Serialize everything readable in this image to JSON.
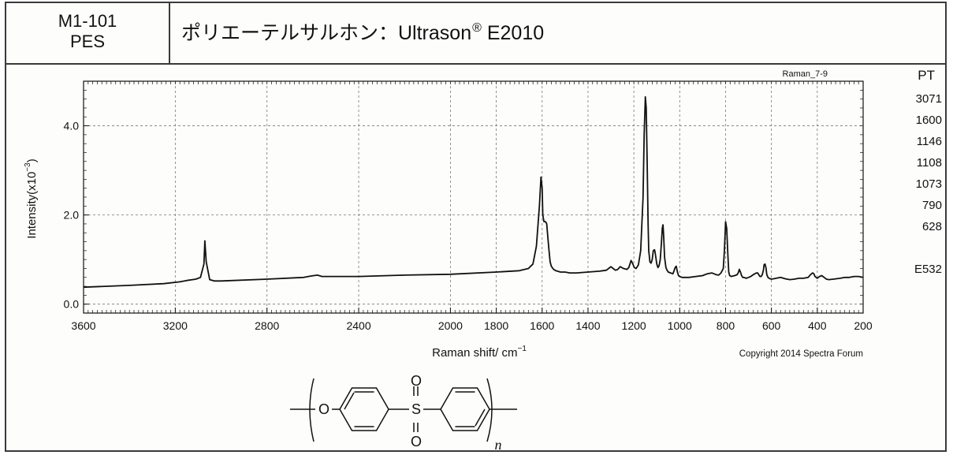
{
  "header": {
    "code": "M1-101",
    "abbrev": "PES",
    "title_main": "ポリエーテルサルホン：Ultrason",
    "title_reg": "®",
    "title_tail": " E2010"
  },
  "chart_data": {
    "type": "line",
    "tag": "Raman_7-9",
    "xlabel": "Raman shift/ cm",
    "xlabel_sup": "−1",
    "ylabel": "Intensity(x10",
    "ylabel_sup": "−3",
    "ylabel_tail": ")",
    "xlim": [
      3600,
      200
    ],
    "ylim": [
      -0.2,
      5.0
    ],
    "x_ticks": [
      3600,
      3200,
      2800,
      2400,
      2000,
      1800,
      1600,
      1400,
      1200,
      1000,
      800,
      600,
      400,
      200
    ],
    "x_tick_labels": [
      "3600",
      "3200",
      "2800",
      "2400",
      "2000",
      "1800",
      "1600",
      "1400",
      "1200",
      "1000",
      "800",
      "600",
      "400",
      "200"
    ],
    "y_ticks": [
      0.0,
      2.0,
      4.0
    ],
    "y_tick_labels": [
      "0.0",
      "2.0",
      "4.0"
    ],
    "grid": true,
    "copyright": "Copyright 2014 Spectra Forum",
    "peak_table_header": "PT",
    "peak_table": [
      "3071",
      "1600",
      "1146",
      "1108",
      "1073",
      "790",
      "628"
    ],
    "excitation": "E532",
    "series": [
      {
        "color": "#111111",
        "x": [
          3600,
          3400,
          3250,
          3180,
          3150,
          3110,
          3090,
          3075,
          3071,
          3065,
          3050,
          3030,
          3000,
          2800,
          2640,
          2610,
          2580,
          2560,
          2400,
          2200,
          2000,
          1800,
          1700,
          1660,
          1640,
          1625,
          1612,
          1605,
          1600,
          1597,
          1592,
          1585,
          1580,
          1575,
          1570,
          1565,
          1560,
          1550,
          1540,
          1520,
          1500,
          1480,
          1450,
          1400,
          1350,
          1320,
          1310,
          1300,
          1290,
          1280,
          1270,
          1260,
          1245,
          1230,
          1222,
          1212,
          1206,
          1198,
          1190,
          1180,
          1170,
          1160,
          1155,
          1150,
          1146,
          1142,
          1138,
          1135,
          1130,
          1125,
          1120,
          1115,
          1110,
          1108,
          1104,
          1100,
          1095,
          1090,
          1085,
          1080,
          1076,
          1073,
          1070,
          1066,
          1060,
          1055,
          1050,
          1040,
          1030,
          1025,
          1020,
          1015,
          1010,
          1005,
          1000,
          990,
          960,
          930,
          900,
          880,
          860,
          840,
          830,
          820,
          810,
          805,
          800,
          795,
          790,
          786,
          782,
          775,
          770,
          760,
          750,
          745,
          740,
          735,
          730,
          725,
          720,
          710,
          700,
          690,
          680,
          665,
          660,
          655,
          650,
          645,
          640,
          635,
          632,
          628,
          624,
          620,
          615,
          610,
          605,
          600,
          590,
          580,
          560,
          540,
          520,
          500,
          480,
          460,
          440,
          430,
          420,
          415,
          410,
          400,
          390,
          380,
          370,
          360,
          350,
          330,
          300,
          280,
          260,
          240,
          220,
          200
        ],
        "y": [
          0.38,
          0.42,
          0.46,
          0.5,
          0.53,
          0.56,
          0.6,
          0.9,
          1.42,
          0.95,
          0.55,
          0.52,
          0.52,
          0.56,
          0.6,
          0.63,
          0.65,
          0.62,
          0.62,
          0.65,
          0.67,
          0.72,
          0.75,
          0.8,
          0.9,
          1.3,
          2.2,
          2.85,
          2.6,
          2.0,
          1.85,
          1.85,
          1.8,
          1.5,
          1.2,
          0.95,
          0.85,
          0.78,
          0.75,
          0.72,
          0.72,
          0.7,
          0.7,
          0.72,
          0.74,
          0.76,
          0.8,
          0.84,
          0.8,
          0.76,
          0.78,
          0.84,
          0.8,
          0.78,
          0.82,
          0.98,
          0.92,
          0.82,
          0.8,
          0.88,
          1.2,
          2.4,
          3.8,
          4.65,
          4.4,
          3.2,
          1.8,
          1.2,
          0.95,
          0.92,
          1.0,
          1.2,
          1.22,
          1.18,
          1.05,
          0.9,
          0.82,
          0.86,
          1.0,
          1.35,
          1.7,
          1.78,
          1.55,
          1.05,
          0.82,
          0.76,
          0.72,
          0.7,
          0.68,
          0.74,
          0.82,
          0.85,
          0.72,
          0.64,
          0.62,
          0.6,
          0.6,
          0.62,
          0.64,
          0.68,
          0.7,
          0.66,
          0.65,
          0.7,
          0.8,
          1.2,
          1.85,
          1.7,
          1.1,
          0.72,
          0.64,
          0.62,
          0.63,
          0.64,
          0.66,
          0.7,
          0.78,
          0.72,
          0.64,
          0.6,
          0.6,
          0.58,
          0.6,
          0.62,
          0.66,
          0.7,
          0.7,
          0.66,
          0.62,
          0.62,
          0.66,
          0.76,
          0.88,
          0.9,
          0.82,
          0.66,
          0.6,
          0.58,
          0.57,
          0.56,
          0.57,
          0.58,
          0.6,
          0.57,
          0.55,
          0.56,
          0.58,
          0.58,
          0.6,
          0.66,
          0.7,
          0.68,
          0.62,
          0.58,
          0.62,
          0.64,
          0.6,
          0.56,
          0.55,
          0.56,
          0.58,
          0.6,
          0.6,
          0.62,
          0.62,
          0.6
        ]
      }
    ]
  },
  "structure": {
    "oxygen": "O",
    "sulfur": "S",
    "n": "n"
  }
}
